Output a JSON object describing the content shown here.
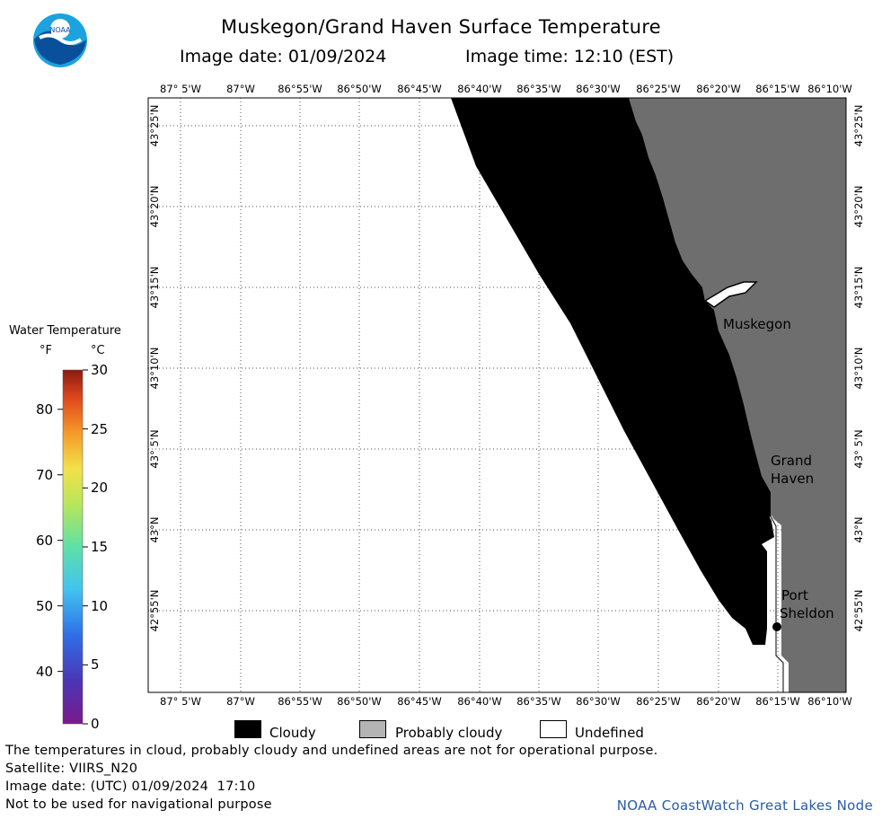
{
  "header": {
    "title": "Muskegon/Grand Haven Surface Temperature",
    "date_line": "Image date: 01/09/2024",
    "time_line": "Image time: 12:10 (EST)",
    "logo_text": "NOAA"
  },
  "map": {
    "lon_labels": [
      "87° 5'W",
      "87°W",
      "86°55'W",
      "86°50'W",
      "86°45'W",
      "86°40'W",
      "86°35'W",
      "86°30'W",
      "86°25'W",
      "86°20'W",
      "86°15'W",
      "86°10'W"
    ],
    "lat_labels": [
      "43°25'N",
      "43°20'N",
      "43°15'N",
      "43°10'N",
      "43° 5'N",
      "43°N",
      "42°55'N"
    ],
    "places": {
      "muskegon": "Muskegon",
      "grand_haven_1": "Grand",
      "grand_haven_2": "Haven",
      "port_sheldon_1": "Port",
      "port_sheldon_2": "Sheldon"
    },
    "colors": {
      "cloudy": "#000000",
      "probably_cloudy": "#6e6e6e",
      "undefined": "#ffffff"
    }
  },
  "legend": {
    "title": "Water Temperature",
    "unit_f": "°F",
    "unit_c": "°C",
    "f_ticks": [
      "80",
      "70",
      "60",
      "50",
      "40"
    ],
    "c_ticks": [
      "30",
      "25",
      "20",
      "15",
      "10",
      "5",
      "0"
    ]
  },
  "key": {
    "cloudy": "Cloudy",
    "probably_cloudy": "Probably cloudy",
    "undefined": "Undefined"
  },
  "footer": {
    "note": "The temperatures in cloud, probably cloudy and undefined areas are not for operational purpose.",
    "satellite": "Satellite: VIIRS_N20",
    "utc_date": "Image date: (UTC) 01/09/2024  17:10",
    "nav_warning": "Not to be used for navigational purpose",
    "credit": "NOAA CoastWatch Great Lakes Node"
  }
}
